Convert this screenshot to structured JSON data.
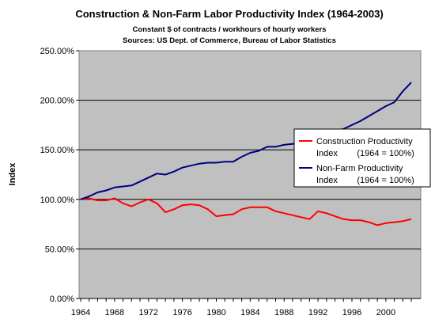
{
  "chart_data": {
    "type": "line",
    "title": "Construction & Non-Farm Labor Productivity Index (1964-2003)",
    "subtitle_lines": [
      "Constant $ of contracts / workhours of hourly workers",
      "Sources: US Dept. of Commerce, Bureau of Labor Statistics"
    ],
    "xlabel": "",
    "ylabel": "Index",
    "x": [
      1964,
      1965,
      1966,
      1967,
      1968,
      1969,
      1970,
      1971,
      1972,
      1973,
      1974,
      1975,
      1976,
      1977,
      1978,
      1979,
      1980,
      1981,
      1982,
      1983,
      1984,
      1985,
      1986,
      1987,
      1988,
      1989,
      1990,
      1991,
      1992,
      1993,
      1994,
      1995,
      1996,
      1997,
      1998,
      1999,
      2000,
      2001,
      2002,
      2003
    ],
    "xlim": [
      1964,
      2003
    ],
    "x_ticks": [
      "1964",
      "1968",
      "1972",
      "1976",
      "1980",
      "1984",
      "1988",
      "1992",
      "1996",
      "2000"
    ],
    "x_tick_values": [
      1964,
      1968,
      1972,
      1976,
      1980,
      1984,
      1988,
      1992,
      1996,
      2000
    ],
    "ylim": [
      0,
      250
    ],
    "y_ticks": [
      "0.00%",
      "50.00%",
      "100.00%",
      "150.00%",
      "200.00%",
      "250.00%"
    ],
    "y_tick_values": [
      0,
      50,
      100,
      150,
      200,
      250
    ],
    "grid": "horizontal",
    "plot_background": "#c0c0c0",
    "legend_position": "right",
    "series": [
      {
        "name_lines": [
          "Construction Productivity",
          "Index        (1964 = 100%)"
        ],
        "color": "#ff0000",
        "values": [
          100,
          101,
          99,
          99,
          101,
          96,
          93,
          97,
          100,
          96,
          87,
          90,
          94,
          95,
          94,
          90,
          83,
          84,
          85,
          90,
          92,
          92,
          92,
          88,
          86,
          84,
          82,
          80,
          88,
          86,
          83,
          80,
          79,
          79,
          77,
          74,
          76,
          77,
          78,
          80
        ]
      },
      {
        "name_lines": [
          "Non-Farm Productivity",
          "Index        (1964 = 100%)"
        ],
        "color": "#000080",
        "values": [
          100,
          103,
          107,
          109,
          112,
          113,
          114,
          118,
          122,
          126,
          125,
          128,
          132,
          134,
          136,
          137,
          137,
          138,
          138,
          143,
          147,
          149,
          153,
          153,
          155,
          156,
          157,
          158,
          163,
          166,
          169,
          171,
          175,
          179,
          184,
          189,
          194,
          198,
          209,
          218
        ]
      }
    ]
  }
}
